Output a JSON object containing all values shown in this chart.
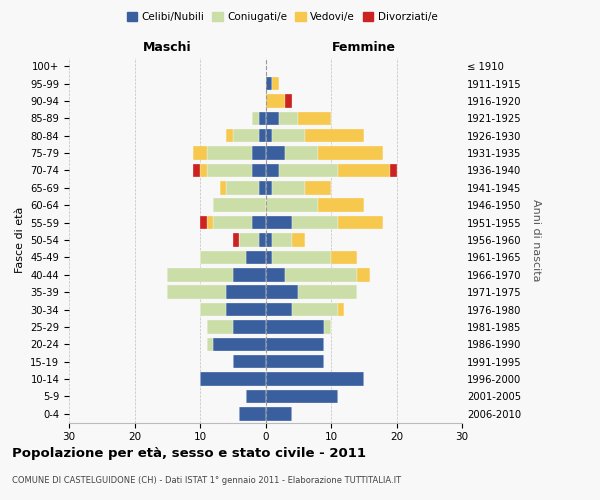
{
  "age_groups": [
    "0-4",
    "5-9",
    "10-14",
    "15-19",
    "20-24",
    "25-29",
    "30-34",
    "35-39",
    "40-44",
    "45-49",
    "50-54",
    "55-59",
    "60-64",
    "65-69",
    "70-74",
    "75-79",
    "80-84",
    "85-89",
    "90-94",
    "95-99",
    "100+"
  ],
  "birth_years": [
    "2006-2010",
    "2001-2005",
    "1996-2000",
    "1991-1995",
    "1986-1990",
    "1981-1985",
    "1976-1980",
    "1971-1975",
    "1966-1970",
    "1961-1965",
    "1956-1960",
    "1951-1955",
    "1946-1950",
    "1941-1945",
    "1936-1940",
    "1931-1935",
    "1926-1930",
    "1921-1925",
    "1916-1920",
    "1911-1915",
    "≤ 1910"
  ],
  "maschi": {
    "celibi": [
      4,
      3,
      10,
      5,
      8,
      5,
      6,
      6,
      5,
      3,
      1,
      2,
      0,
      1,
      2,
      2,
      1,
      1,
      0,
      0,
      0
    ],
    "coniugati": [
      0,
      0,
      0,
      0,
      1,
      4,
      4,
      9,
      10,
      7,
      3,
      6,
      8,
      5,
      7,
      7,
      4,
      1,
      0,
      0,
      0
    ],
    "vedovi": [
      0,
      0,
      0,
      0,
      0,
      0,
      0,
      0,
      0,
      0,
      0,
      1,
      0,
      1,
      1,
      2,
      1,
      0,
      0,
      0,
      0
    ],
    "divorziati": [
      0,
      0,
      0,
      0,
      0,
      0,
      0,
      0,
      0,
      0,
      1,
      1,
      0,
      0,
      1,
      0,
      0,
      0,
      0,
      0,
      0
    ]
  },
  "femmine": {
    "nubili": [
      4,
      11,
      15,
      9,
      9,
      9,
      4,
      5,
      3,
      1,
      1,
      4,
      0,
      1,
      2,
      3,
      1,
      2,
      0,
      1,
      0
    ],
    "coniugate": [
      0,
      0,
      0,
      0,
      0,
      1,
      7,
      9,
      11,
      9,
      3,
      7,
      8,
      5,
      9,
      5,
      5,
      3,
      0,
      0,
      0
    ],
    "vedove": [
      0,
      0,
      0,
      0,
      0,
      0,
      1,
      0,
      2,
      4,
      2,
      7,
      7,
      4,
      8,
      10,
      9,
      5,
      3,
      1,
      0
    ],
    "divorziate": [
      0,
      0,
      0,
      0,
      0,
      0,
      0,
      0,
      0,
      0,
      0,
      0,
      0,
      0,
      1,
      0,
      0,
      0,
      1,
      0,
      0
    ]
  },
  "colors": {
    "celibi": "#3a5f9f",
    "coniugati": "#ccdea8",
    "vedovi": "#f6c84e",
    "divorziati": "#cc2222"
  },
  "xlim": 30,
  "title": "Popolazione per età, sesso e stato civile - 2011",
  "subtitle": "COMUNE DI CASTELGUIDONE (CH) - Dati ISTAT 1° gennaio 2011 - Elaborazione TUTTITALIA.IT",
  "ylabel_left": "Fasce di età",
  "ylabel_right": "Anni di nascita",
  "bg_color": "#f8f8f8"
}
